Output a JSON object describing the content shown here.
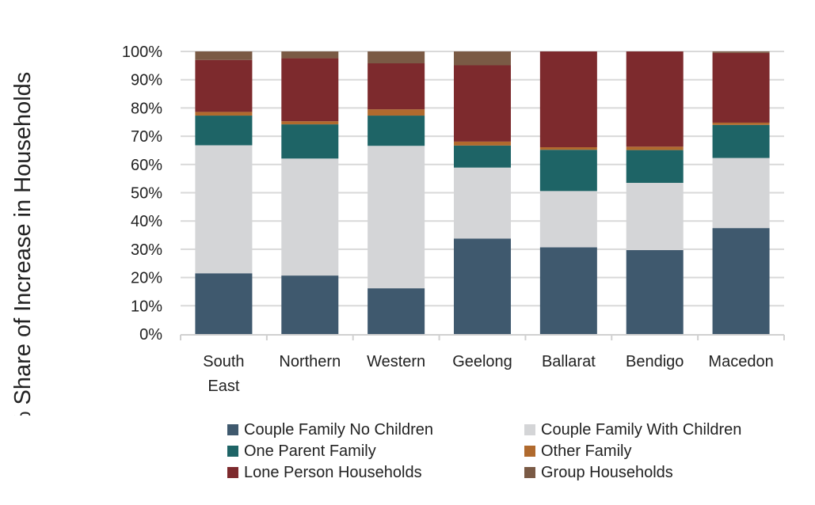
{
  "chart_data": {
    "type": "bar",
    "stacked": true,
    "ylabel": "% Share of Increase in Households",
    "ylim": [
      0,
      100
    ],
    "yticks": [
      "0%",
      "10%",
      "20%",
      "30%",
      "40%",
      "50%",
      "60%",
      "70%",
      "80%",
      "90%",
      "100%"
    ],
    "grid": true,
    "legend_position": "bottom",
    "categories": [
      "South East",
      "Northern",
      "Western",
      "Geelong",
      "Ballarat",
      "Bendigo",
      "Macedon"
    ],
    "series": [
      {
        "name": "Couple Family No Children",
        "color": "#3f596e",
        "values": [
          21.5,
          20.7,
          16.2,
          33.8,
          30.7,
          29.7,
          37.5
        ]
      },
      {
        "name": "Couple Family With Children",
        "color": "#d4d5d7",
        "values": [
          45.3,
          41.4,
          50.4,
          25.1,
          19.9,
          23.8,
          24.8
        ]
      },
      {
        "name": "One Parent Family",
        "color": "#1e6466",
        "values": [
          10.5,
          12.1,
          10.7,
          7.8,
          14.6,
          11.6,
          11.7
        ]
      },
      {
        "name": "Other Family",
        "color": "#b06a2e",
        "values": [
          1.3,
          1.1,
          2.2,
          1.4,
          0.9,
          1.2,
          0.8
        ]
      },
      {
        "name": "Lone Person Households",
        "color": "#7d2a2d",
        "values": [
          18.4,
          22.3,
          16.3,
          27.0,
          33.9,
          33.7,
          24.7
        ]
      },
      {
        "name": "Group Households",
        "color": "#7a5a45",
        "values": [
          3.0,
          2.4,
          4.2,
          4.9,
          0.0,
          0.0,
          0.5
        ]
      }
    ]
  }
}
